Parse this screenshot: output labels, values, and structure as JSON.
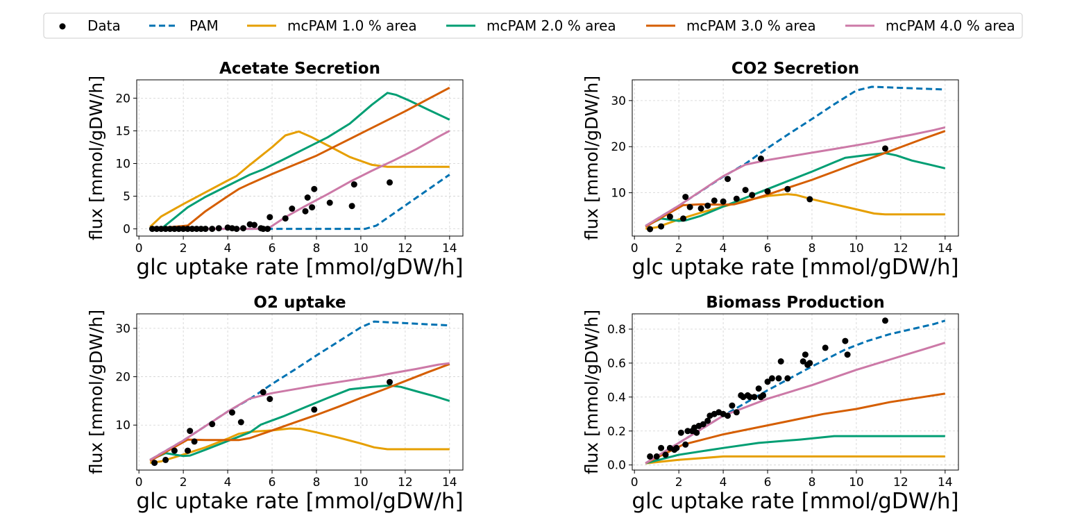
{
  "legend": {
    "items": [
      {
        "label": "Data",
        "kind": "marker",
        "color": "#000000"
      },
      {
        "label": "PAM",
        "kind": "dashed",
        "color": "#0072B2"
      },
      {
        "label": "mcPAM 1.0 % area",
        "kind": "line",
        "color": "#E69F00"
      },
      {
        "label": "mcPAM 2.0 % area",
        "kind": "line",
        "color": "#009E73"
      },
      {
        "label": "mcPAM 3.0 % area",
        "kind": "line",
        "color": "#D55E00"
      },
      {
        "label": "mcPAM 4.0 % area",
        "kind": "line",
        "color": "#CC79A7"
      }
    ]
  },
  "chart_data": [
    {
      "type": "line",
      "title": "Acetate Secretion",
      "xlabel": "glc uptake rate [mmol/gDW/h]",
      "ylabel": "flux [mmol/gDW/h]",
      "xlim": [
        -0.1,
        14.6
      ],
      "ylim": [
        -1.1,
        22.8
      ],
      "xticks": [
        0,
        2,
        4,
        6,
        8,
        10,
        12,
        14
      ],
      "yticks": [
        0,
        5,
        10,
        15,
        20
      ],
      "grid": true,
      "scatter": {
        "name": "Data",
        "x": [
          0.6,
          0.8,
          1.0,
          1.2,
          1.4,
          1.6,
          1.8,
          2.0,
          2.2,
          2.4,
          2.6,
          2.8,
          3.0,
          3.3,
          3.6,
          4.0,
          4.2,
          4.4,
          4.7,
          5.0,
          5.2,
          5.5,
          5.6,
          5.8,
          5.9,
          6.6,
          6.9,
          7.5,
          7.6,
          7.8,
          7.9,
          8.6,
          9.6,
          9.7,
          11.3
        ],
        "y": [
          0,
          0,
          0,
          0,
          0,
          0,
          0,
          0,
          0,
          0,
          0,
          0,
          0,
          0,
          0.1,
          0.2,
          0.1,
          0,
          0.1,
          0.7,
          0.6,
          0.1,
          0,
          0,
          1.8,
          1.6,
          3.1,
          2.7,
          4.8,
          3.3,
          6.1,
          4.0,
          3.5,
          6.8,
          7.1
        ]
      },
      "series": [
        {
          "name": "PAM",
          "x": [
            0.5,
            10.2,
            10.7,
            14
          ],
          "y": [
            0,
            0,
            0.5,
            8.3
          ]
        },
        {
          "name": "mcPAM 1.0 % area",
          "x": [
            0.5,
            1.0,
            2.0,
            3.0,
            4.0,
            4.4,
            5.0,
            6.0,
            6.6,
            7.2,
            7.8,
            8.6,
            9.5,
            10.5,
            11.2,
            12,
            13,
            14
          ],
          "y": [
            0.3,
            1.9,
            3.8,
            5.6,
            7.4,
            8.1,
            9.8,
            12.5,
            14.3,
            14.9,
            14.0,
            12.6,
            11.0,
            9.8,
            9.5,
            9.5,
            9.5,
            9.5
          ]
        },
        {
          "name": "mcPAM 2.0 % area",
          "x": [
            0.5,
            1.0,
            2.2,
            3.0,
            4.0,
            5.0,
            5.6,
            6.5,
            7.5,
            8.5,
            9.5,
            10.5,
            11.2,
            11.6,
            12.2,
            13,
            14
          ],
          "y": [
            0,
            0,
            3.3,
            4.9,
            6.6,
            8.3,
            9.1,
            10.6,
            12.3,
            14.0,
            16.1,
            19.0,
            20.8,
            20.5,
            19.6,
            18.3,
            16.7
          ]
        },
        {
          "name": "mcPAM 3.0 % area",
          "x": [
            0.5,
            2.2,
            3.0,
            4.0,
            4.5,
            5.0,
            6.0,
            7.0,
            8.0,
            9.0,
            10.0,
            11.0,
            12.0,
            13.0,
            14.0
          ],
          "y": [
            0,
            0.5,
            2.7,
            5.0,
            6.1,
            6.9,
            8.4,
            9.8,
            11.2,
            12.9,
            14.6,
            16.3,
            18.0,
            19.8,
            21.6
          ]
        },
        {
          "name": "mcPAM 4.0 % area",
          "x": [
            0.5,
            5.8,
            6.6,
            7.5,
            8.5,
            9.5,
            10.5,
            11.5,
            12.5,
            13.5,
            14.0
          ],
          "y": [
            0,
            0,
            1.8,
            3.5,
            5.3,
            7.2,
            8.9,
            10.5,
            12.2,
            14.1,
            15.0
          ]
        }
      ]
    },
    {
      "type": "line",
      "title": "CO2 Secretion",
      "xlabel": "glc uptake rate [mmol/gDW/h]",
      "ylabel": "flux [mmol/gDW/h]",
      "xlim": [
        -0.1,
        14.6
      ],
      "ylim": [
        0.6,
        34.5
      ],
      "xticks": [
        0,
        2,
        4,
        6,
        8,
        10,
        12,
        14
      ],
      "yticks": [
        10,
        20,
        30
      ],
      "grid": true,
      "scatter": {
        "name": "Data",
        "x": [
          0.7,
          1.2,
          1.6,
          2.2,
          2.3,
          2.5,
          3.0,
          3.3,
          3.6,
          4.0,
          4.2,
          4.6,
          5.0,
          5.3,
          5.7,
          6.0,
          6.9,
          7.9,
          11.3
        ],
        "y": [
          2.1,
          2.7,
          4.8,
          4.4,
          9.1,
          6.9,
          6.6,
          7.2,
          8.3,
          8.1,
          13.0,
          8.7,
          10.6,
          9.5,
          17.4,
          10.3,
          10.8,
          8.6,
          19.6
        ]
      },
      "series": [
        {
          "name": "PAM",
          "x": [
            0.5,
            2,
            4,
            5,
            6,
            7,
            8,
            9,
            10,
            10.7,
            14
          ],
          "y": [
            2.8,
            7.2,
            13.5,
            16.3,
            19.7,
            22.9,
            26.0,
            29.2,
            32.2,
            33.0,
            32.4
          ]
        },
        {
          "name": "mcPAM 1.0 % area",
          "x": [
            0.5,
            1.0,
            2.0,
            3.0,
            4.0,
            5.0,
            6.0,
            6.9,
            7.3,
            8.0,
            9.0,
            10.0,
            10.8,
            11.3,
            12.0,
            13.0,
            14.0
          ],
          "y": [
            2.2,
            2.5,
            4.2,
            5.7,
            7.0,
            8.3,
            9.3,
            9.7,
            9.5,
            8.6,
            7.5,
            6.4,
            5.5,
            5.3,
            5.3,
            5.3,
            5.3
          ]
        },
        {
          "name": "mcPAM 2.0 % area",
          "x": [
            0.5,
            1.2,
            2.0,
            2.3,
            3.0,
            4.0,
            5.0,
            6.0,
            7.0,
            8.0,
            9.0,
            9.5,
            10.5,
            11.3,
            11.8,
            12.5,
            13.3,
            14.0
          ],
          "y": [
            2.8,
            4.4,
            3.9,
            4.0,
            5.0,
            7.0,
            8.9,
            10.8,
            12.7,
            14.6,
            16.6,
            17.6,
            18.2,
            18.6,
            18.1,
            17.0,
            16.1,
            15.3
          ]
        },
        {
          "name": "mcPAM 3.0 % area",
          "x": [
            0.5,
            1.5,
            2.2,
            3.0,
            4.0,
            4.5,
            5.0,
            6.0,
            7.0,
            8.0,
            9.0,
            10.0,
            11.0,
            12.0,
            13.0,
            14.0
          ],
          "y": [
            2.6,
            5.4,
            7.3,
            7.5,
            7.4,
            7.5,
            8.1,
            9.6,
            11.2,
            12.8,
            14.6,
            16.4,
            18.1,
            19.9,
            21.7,
            23.4
          ]
        },
        {
          "name": "mcPAM 4.0 % area",
          "x": [
            0.5,
            2.0,
            4.0,
            5.0,
            6.0,
            7.0,
            8.0,
            9.0,
            10.0,
            10.7,
            11.5,
            12.5,
            13.5,
            14.0
          ],
          "y": [
            2.8,
            7.2,
            13.6,
            16.1,
            17.1,
            17.9,
            18.7,
            19.5,
            20.3,
            20.9,
            21.7,
            22.6,
            23.6,
            24.2
          ]
        }
      ]
    },
    {
      "type": "line",
      "title": "O2 uptake",
      "xlabel": "glc uptake rate [mmol/gDW/h]",
      "ylabel": "flux [mmol/gDW/h]",
      "xlim": [
        -0.1,
        14.6
      ],
      "ylim": [
        0.7,
        33.0
      ],
      "xticks": [
        0,
        2,
        4,
        6,
        8,
        10,
        12,
        14
      ],
      "yticks": [
        10,
        20,
        30
      ],
      "grid": true,
      "scatter": {
        "name": "Data",
        "x": [
          0.7,
          1.2,
          1.6,
          2.2,
          2.3,
          2.5,
          3.3,
          4.2,
          4.6,
          5.6,
          5.9,
          7.9,
          11.3
        ],
        "y": [
          2.2,
          2.8,
          4.7,
          4.7,
          8.8,
          6.6,
          10.2,
          12.6,
          10.6,
          16.8,
          15.4,
          13.2,
          18.9
        ]
      },
      "series": [
        {
          "name": "PAM",
          "x": [
            0.5,
            2,
            4,
            5,
            6,
            7,
            8,
            9,
            10,
            10.6,
            14
          ],
          "y": [
            2.8,
            6.8,
            12.8,
            15.4,
            18.5,
            21.4,
            24.4,
            27.3,
            30.2,
            31.4,
            30.6
          ]
        },
        {
          "name": "mcPAM 1.0 % area",
          "x": [
            0.5,
            1.0,
            2.0,
            3.0,
            4.0,
            4.5,
            5.0,
            6.0,
            6.8,
            7.3,
            8.0,
            9.0,
            10.0,
            10.6,
            11.2,
            12.0,
            13.0,
            14.0
          ],
          "y": [
            2.2,
            2.5,
            3.9,
            5.4,
            7.2,
            8.2,
            8.6,
            8.9,
            9.3,
            9.2,
            8.5,
            7.4,
            6.2,
            5.4,
            5.0,
            5.0,
            5.0,
            5.0
          ]
        },
        {
          "name": "mcPAM 2.0 % area",
          "x": [
            0.5,
            1.2,
            2.0,
            2.3,
            3.0,
            4.0,
            5.0,
            5.5,
            6.5,
            7.5,
            8.5,
            9.5,
            10.5,
            11.3,
            11.8,
            12.5,
            13.3,
            14.0
          ],
          "y": [
            2.8,
            4.2,
            3.6,
            3.7,
            4.9,
            6.7,
            8.5,
            10.1,
            11.8,
            13.7,
            15.6,
            17.4,
            17.9,
            18.2,
            17.9,
            17.0,
            16.0,
            15.0
          ]
        },
        {
          "name": "mcPAM 3.0 % area",
          "x": [
            0.5,
            1.5,
            2.2,
            3.0,
            4.0,
            4.5,
            5.0,
            6.0,
            7.0,
            8.0,
            9.0,
            10.0,
            11.0,
            12.0,
            13.0,
            14.0
          ],
          "y": [
            2.6,
            5.2,
            7.0,
            6.9,
            6.9,
            6.9,
            7.3,
            8.9,
            10.5,
            12.1,
            13.8,
            15.6,
            17.3,
            19.1,
            20.9,
            22.6
          ]
        },
        {
          "name": "mcPAM 4.0 % area",
          "x": [
            0.5,
            2.0,
            4.0,
            5.0,
            6.0,
            7.0,
            8.0,
            9.0,
            10.0,
            10.7,
            11.5,
            12.5,
            13.5,
            14.0
          ],
          "y": [
            2.8,
            6.8,
            12.8,
            15.5,
            16.6,
            17.4,
            18.2,
            18.9,
            19.6,
            20.1,
            20.8,
            21.6,
            22.5,
            22.8
          ]
        }
      ]
    },
    {
      "type": "line",
      "title": "Biomass Production",
      "xlabel": "glc uptake rate [mmol/gDW/h]",
      "ylabel": "flux [mmol/gDW/h]",
      "xlim": [
        -0.1,
        14.6
      ],
      "ylim": [
        -0.03,
        0.89
      ],
      "xticks": [
        0,
        2,
        4,
        6,
        8,
        10,
        12,
        14
      ],
      "yticks": [
        0.0,
        0.2,
        0.4,
        0.6,
        0.8
      ],
      "grid": true,
      "scatter": {
        "name": "Data",
        "x": [
          0.7,
          1.0,
          1.2,
          1.4,
          1.6,
          1.8,
          1.9,
          2.1,
          2.3,
          2.4,
          2.6,
          2.7,
          2.8,
          2.9,
          3.1,
          3.3,
          3.4,
          3.6,
          3.8,
          4.0,
          4.2,
          4.4,
          4.6,
          4.8,
          4.9,
          5.1,
          5.2,
          5.4,
          5.6,
          5.7,
          5.8,
          6.0,
          6.2,
          6.5,
          6.6,
          6.9,
          7.6,
          7.7,
          7.8,
          7.9,
          8.6,
          9.5,
          9.6,
          11.3
        ],
        "y": [
          0.05,
          0.05,
          0.1,
          0.06,
          0.1,
          0.09,
          0.1,
          0.19,
          0.12,
          0.2,
          0.2,
          0.22,
          0.19,
          0.23,
          0.24,
          0.26,
          0.29,
          0.3,
          0.31,
          0.3,
          0.29,
          0.35,
          0.31,
          0.41,
          0.4,
          0.41,
          0.4,
          0.4,
          0.45,
          0.4,
          0.41,
          0.49,
          0.51,
          0.51,
          0.61,
          0.51,
          0.61,
          0.65,
          0.59,
          0.6,
          0.69,
          0.73,
          0.65,
          0.85
        ]
      },
      "series": [
        {
          "name": "PAM",
          "x": [
            0.5,
            2.0,
            4.0,
            6.0,
            8.0,
            9.5,
            10.5,
            11.5,
            12.5,
            13.5,
            14.0
          ],
          "y": [
            0.01,
            0.13,
            0.29,
            0.44,
            0.58,
            0.68,
            0.73,
            0.77,
            0.8,
            0.83,
            0.85
          ]
        },
        {
          "name": "mcPAM 1.0 % area",
          "x": [
            0.5,
            2.0,
            3.0,
            4.0,
            4.4,
            6.0,
            8.0,
            10.0,
            12.0,
            14.0
          ],
          "y": [
            0.01,
            0.03,
            0.04,
            0.05,
            0.05,
            0.05,
            0.05,
            0.05,
            0.05,
            0.05
          ]
        },
        {
          "name": "mcPAM 2.0 % area",
          "x": [
            0.5,
            2.0,
            4.0,
            5.6,
            7.5,
            9.0,
            9.5,
            10.5,
            11.5,
            12.5,
            14.0
          ],
          "y": [
            0.01,
            0.06,
            0.1,
            0.13,
            0.15,
            0.17,
            0.17,
            0.17,
            0.17,
            0.17,
            0.17
          ]
        },
        {
          "name": "mcPAM 3.0 % area",
          "x": [
            0.5,
            2.2,
            4.0,
            5.5,
            7.0,
            8.5,
            10.0,
            11.5,
            13.0,
            14.0
          ],
          "y": [
            0.01,
            0.12,
            0.18,
            0.22,
            0.26,
            0.3,
            0.33,
            0.37,
            0.4,
            0.42
          ]
        },
        {
          "name": "mcPAM 4.0 % area",
          "x": [
            0.5,
            2.0,
            4.0,
            6.0,
            8.0,
            10.0,
            11.5,
            13.0,
            14.0
          ],
          "y": [
            0.01,
            0.13,
            0.29,
            0.39,
            0.47,
            0.56,
            0.62,
            0.68,
            0.72
          ]
        }
      ]
    }
  ]
}
